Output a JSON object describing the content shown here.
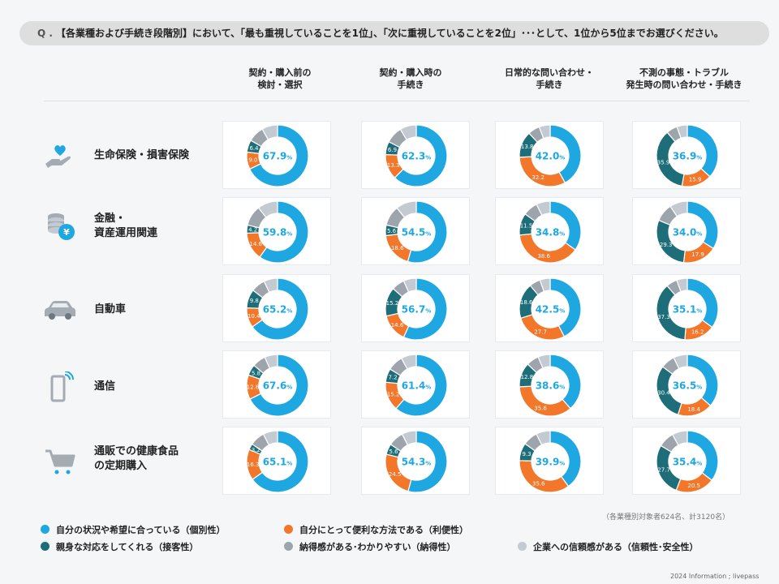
{
  "question": {
    "mark": "Q .",
    "text": "【各業種および手続き段階別】において、「最も重視していることを1位」、「次に重視していることを2位」･･･として、1位から5位までお選びください。"
  },
  "columns": [
    {
      "line1": "契約・購入前の",
      "line2": "検討・選択"
    },
    {
      "line1": "契約・購入時の",
      "line2": "手続き"
    },
    {
      "line1": "日常的な問い合わせ・",
      "line2": "手続き"
    },
    {
      "line1": "不測の事態・トラブル",
      "line2": "発生時の問い合わせ・手続き"
    }
  ],
  "rows": [
    {
      "line1": "生命保険・損害保険",
      "line2": "",
      "icon": "hand-heart-icon"
    },
    {
      "line1": "金融・",
      "line2": "資産運用関連",
      "icon": "coins-yen-icon"
    },
    {
      "line1": "自動車",
      "line2": "",
      "icon": "car-icon"
    },
    {
      "line1": "通信",
      "line2": "",
      "icon": "smartphone-icon"
    },
    {
      "line1": "通販での健康食品",
      "line2": "の定期購入",
      "icon": "shopping-cart-icon"
    }
  ],
  "colors": {
    "individuality": "#1ea7e1",
    "convenience": "#f2772a",
    "hospitality": "#1e6e7a",
    "persuasiveness": "#9ea4ab",
    "trust": "#c4cad1"
  },
  "chart_data": {
    "type": "donut-grid",
    "unit": "%",
    "series_order": [
      "individuality",
      "convenience",
      "hospitality",
      "persuasiveness",
      "trust"
    ],
    "cells": [
      [
        {
          "main": "67.9",
          "conv": "9.0",
          "hosp": "6.4",
          "values": [
            67.9,
            9.0,
            6.4,
            8.4,
            8.3
          ]
        },
        {
          "main": "62.3",
          "conv": "13.3",
          "hosp": "6.9",
          "values": [
            62.3,
            13.3,
            6.9,
            8.9,
            8.6
          ]
        },
        {
          "main": "42.0",
          "conv": "32.2",
          "hosp": "13.8",
          "values": [
            42.0,
            32.2,
            13.8,
            6.2,
            5.8
          ]
        },
        {
          "main": "36.9",
          "conv": "15.9",
          "hosp": "35.9",
          "values": [
            36.9,
            15.9,
            35.9,
            5.8,
            5.5
          ]
        }
      ],
      [
        {
          "main": "59.8",
          "conv": "14.6",
          "hosp": "4.2",
          "values": [
            59.8,
            14.6,
            4.2,
            10.8,
            10.6
          ]
        },
        {
          "main": "54.5",
          "conv": "18.6",
          "hosp": "5.6",
          "values": [
            54.5,
            18.6,
            5.6,
            10.5,
            10.8
          ]
        },
        {
          "main": "34.8",
          "conv": "38.6",
          "hosp": "11.5",
          "values": [
            34.8,
            38.6,
            11.5,
            7.8,
            7.3
          ]
        },
        {
          "main": "34.0",
          "conv": "17.9",
          "hosp": "29.3",
          "values": [
            34.0,
            17.9,
            29.3,
            9.5,
            9.3
          ]
        }
      ],
      [
        {
          "main": "65.2",
          "conv": "10.4",
          "hosp": "9.8",
          "values": [
            65.2,
            10.4,
            9.8,
            7.4,
            7.2
          ]
        },
        {
          "main": "56.7",
          "conv": "14.6",
          "hosp": "15.2",
          "values": [
            56.7,
            14.6,
            15.2,
            6.8,
            6.7
          ]
        },
        {
          "main": "42.5",
          "conv": "27.7",
          "hosp": "18.6",
          "values": [
            42.5,
            27.7,
            18.6,
            5.8,
            5.4
          ]
        },
        {
          "main": "35.1",
          "conv": "16.2",
          "hosp": "37.3",
          "values": [
            35.1,
            16.2,
            37.3,
            5.8,
            5.6
          ]
        }
      ],
      [
        {
          "main": "67.6",
          "conv": "12.8",
          "hosp": "5.8",
          "values": [
            67.6,
            12.8,
            5.8,
            7.0,
            6.8
          ]
        },
        {
          "main": "61.4",
          "conv": "15.2",
          "hosp": "7.2",
          "values": [
            61.4,
            15.2,
            7.2,
            8.2,
            8.0
          ]
        },
        {
          "main": "38.6",
          "conv": "35.6",
          "hosp": "12.8",
          "values": [
            38.6,
            35.6,
            12.8,
            6.6,
            6.4
          ]
        },
        {
          "main": "36.5",
          "conv": "18.4",
          "hosp": "30.4",
          "values": [
            36.5,
            18.4,
            30.4,
            7.4,
            7.3
          ]
        }
      ],
      [
        {
          "main": "65.1",
          "conv": "16.3",
          "hosp": "3.2",
          "values": [
            65.1,
            16.3,
            3.2,
            7.8,
            7.6
          ]
        },
        {
          "main": "54.3",
          "conv": "24.5",
          "hosp": "5.6",
          "values": [
            54.3,
            24.5,
            5.6,
            8.0,
            7.6
          ]
        },
        {
          "main": "39.9",
          "conv": "35.6",
          "hosp": "9.3",
          "values": [
            39.9,
            35.6,
            9.3,
            7.8,
            7.4
          ]
        },
        {
          "main": "35.4",
          "conv": "20.5",
          "hosp": "27.7",
          "values": [
            35.4,
            20.5,
            27.7,
            8.4,
            8.0
          ]
        }
      ]
    ]
  },
  "note": "（各業種別対象者624名、計3120名）",
  "legend": [
    {
      "key": "individuality",
      "label": "自分の状況や希望に合っている（個別性）"
    },
    {
      "key": "convenience",
      "label": "自分にとって便利な方法である（利便性）"
    },
    {
      "key": "hospitality",
      "label": "親身な対応をしてくれる（接客性）"
    },
    {
      "key": "persuasiveness",
      "label": "納得感がある･わかりやすい（納得性）"
    },
    {
      "key": "trust",
      "label": "企業への信頼感がある（信頼性･安全性）"
    }
  ],
  "credit": "2024 Information ; livepass"
}
